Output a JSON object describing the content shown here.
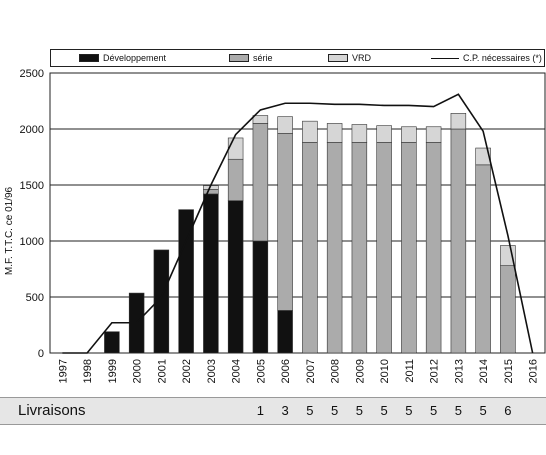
{
  "chart_data": {
    "type": "bar",
    "ylabel": "M.F. T.T.C. ce 01/96",
    "ylim": [
      0,
      2500
    ],
    "yticks": [
      "0",
      "500",
      "1000",
      "1500",
      "2000",
      "2500"
    ],
    "categories": [
      "1997",
      "1998",
      "1999",
      "2000",
      "2001",
      "2002",
      "2003",
      "2004",
      "2005",
      "2006",
      "2007",
      "2008",
      "2009",
      "2010",
      "2011",
      "2012",
      "2013",
      "2014",
      "2015",
      "2016"
    ],
    "series": [
      {
        "name": "Développement",
        "color": "#111111",
        "values": [
          0,
          0,
          190,
          535,
          920,
          1280,
          1420,
          1360,
          1000,
          380,
          0,
          0,
          0,
          0,
          0,
          0,
          0,
          0,
          0,
          0
        ]
      },
      {
        "name": "série",
        "color": "#ababab",
        "values": [
          0,
          0,
          0,
          0,
          0,
          0,
          40,
          370,
          1050,
          1580,
          1880,
          1880,
          1880,
          1880,
          1880,
          1880,
          2000,
          1680,
          780,
          0
        ]
      },
      {
        "name": "VRD",
        "color": "#d6d6d6",
        "values": [
          0,
          0,
          0,
          0,
          0,
          0,
          35,
          190,
          70,
          150,
          190,
          170,
          160,
          150,
          140,
          140,
          140,
          150,
          180,
          0
        ]
      }
    ],
    "line": {
      "name": "C.P. nécessaires  (*)",
      "color": "#111111",
      "values": [
        0,
        0,
        270,
        270,
        500,
        1000,
        1500,
        1950,
        2170,
        2230,
        2230,
        2220,
        2220,
        2210,
        2210,
        2200,
        2310,
        1980,
        1050,
        0
      ]
    },
    "grid": true
  },
  "deliveries": {
    "label": "Livraisons",
    "values": [
      "",
      "",
      "",
      "",
      "",
      "",
      "",
      "",
      "1",
      "3",
      "5",
      "5",
      "5",
      "5",
      "5",
      "5",
      "5",
      "5",
      "6",
      ""
    ]
  }
}
